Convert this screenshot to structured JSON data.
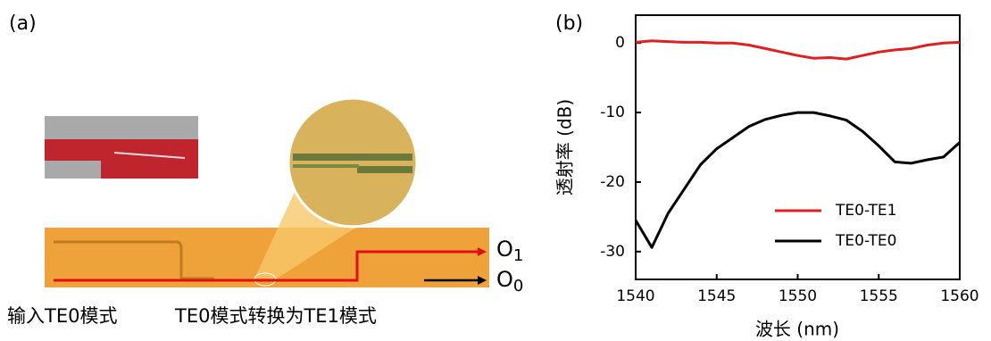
{
  "panel_a": {
    "label": "(a)",
    "outputs": [
      {
        "main": "O",
        "sub": "1"
      },
      {
        "main": "O",
        "sub": "0"
      }
    ],
    "captions": [
      "输入TE0模式",
      "TE0模式转换为TE1模式"
    ]
  },
  "chart_data": {
    "type": "line",
    "panel_label": "(b)",
    "xlabel": "波长 (nm)",
    "ylabel": "透射率 (dB)",
    "x": [
      1540,
      1541,
      1542,
      1543,
      1544,
      1545,
      1546,
      1547,
      1548,
      1549,
      1550,
      1551,
      1552,
      1553,
      1554,
      1555,
      1556,
      1557,
      1558,
      1559,
      1560
    ],
    "series": [
      {
        "name": "TE0-TE1",
        "color": "#e02020",
        "values": [
          0.1,
          0.3,
          0.2,
          0.1,
          0.1,
          0,
          0,
          -0.3,
          -0.8,
          -1.3,
          -1.8,
          -2.2,
          -2.1,
          -2.3,
          -1.8,
          -1.3,
          -1,
          -0.8,
          -0.3,
          0,
          0.1
        ]
      },
      {
        "name": "TE0-TE0",
        "color": "#000000",
        "values": [
          -25.5,
          -29.4,
          -24.5,
          -21,
          -17.5,
          -15.2,
          -13.6,
          -12,
          -11,
          -10.4,
          -10,
          -10,
          -10.5,
          -11.1,
          -12.7,
          -14.8,
          -17.1,
          -17.3,
          -16.8,
          -16.4,
          -14.3
        ]
      }
    ],
    "xlim": [
      1540,
      1560
    ],
    "xticks": [
      1540,
      1545,
      1550,
      1555,
      1560
    ],
    "ylim": [
      -34,
      4
    ],
    "yticks": [
      0,
      -10,
      -20,
      -30
    ],
    "legend": "lower right",
    "grid": false
  }
}
